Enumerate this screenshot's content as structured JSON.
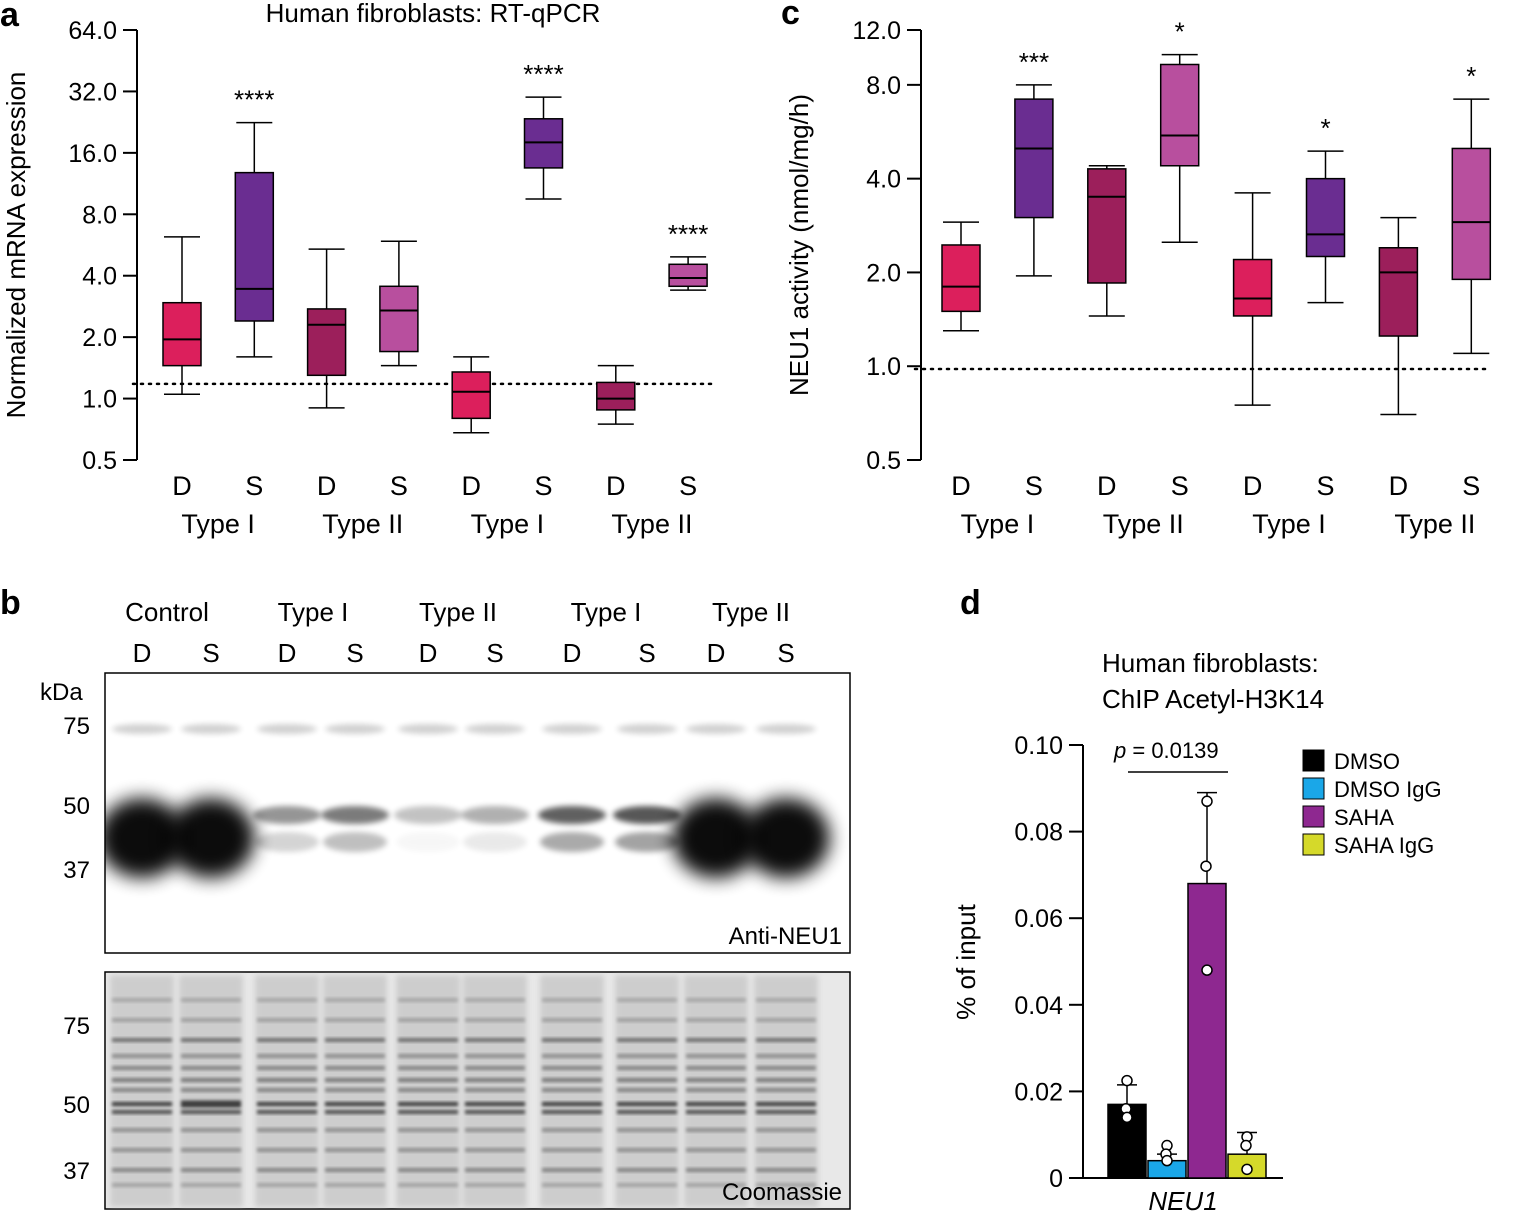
{
  "panel_a": {
    "label": "a",
    "chart_data": {
      "type": "box",
      "title": "Human fibroblasts: RT-qPCR",
      "ylabel": "Normalized mRNA expression",
      "yscale": "log2",
      "ylim": [
        0.5,
        64
      ],
      "yticks": [
        "64.0",
        "32.0",
        "16.0",
        "8.0",
        "4.0",
        "2.0",
        "1.0",
        "0.5"
      ],
      "reference_line": 1.18,
      "groups": [
        "Type I",
        "Type II",
        "Type I",
        "Type II"
      ],
      "categories": [
        "D",
        "S",
        "D",
        "S",
        "D",
        "S",
        "D",
        "S"
      ],
      "colors": [
        "#dc1f5c",
        "#6a2d91",
        "#9c1f5b",
        "#b84f9e",
        "#dc1f5c",
        "#6a2d91",
        "#9c1f5b",
        "#b84f9e"
      ],
      "boxes": [
        {
          "min": 1.05,
          "q1": 1.45,
          "median": 1.95,
          "q3": 2.95,
          "max": 6.2,
          "sig": ""
        },
        {
          "min": 1.6,
          "q1": 2.4,
          "median": 3.45,
          "q3": 12.8,
          "max": 22.5,
          "sig": "****"
        },
        {
          "min": 0.9,
          "q1": 1.3,
          "median": 2.3,
          "q3": 2.75,
          "max": 5.4,
          "sig": ""
        },
        {
          "min": 1.45,
          "q1": 1.7,
          "median": 2.7,
          "q3": 3.55,
          "max": 5.9,
          "sig": ""
        },
        {
          "min": 0.68,
          "q1": 0.8,
          "median": 1.08,
          "q3": 1.35,
          "max": 1.6,
          "sig": ""
        },
        {
          "min": 9.5,
          "q1": 13.5,
          "median": 18.0,
          "q3": 23.5,
          "max": 30.0,
          "sig": "****"
        },
        {
          "min": 0.75,
          "q1": 0.88,
          "median": 1.0,
          "q3": 1.2,
          "max": 1.45,
          "sig": ""
        },
        {
          "min": 3.4,
          "q1": 3.55,
          "median": 3.9,
          "q3": 4.55,
          "max": 4.95,
          "sig": "****"
        }
      ]
    }
  },
  "panel_c": {
    "label": "c",
    "chart_data": {
      "type": "box",
      "ylabel": "NEU1 activity (nmol/mg/h)",
      "yscale": "log2",
      "ylim": [
        0.5,
        12
      ],
      "yticks": [
        "12.0",
        "8.0",
        "4.0",
        "2.0",
        "1.0",
        "0.5"
      ],
      "reference_line": 0.98,
      "groups": [
        "Type I",
        "Type II",
        "Type I",
        "Type II"
      ],
      "categories": [
        "D",
        "S",
        "D",
        "S",
        "D",
        "S",
        "D",
        "S"
      ],
      "colors": [
        "#dc1f5c",
        "#6a2d91",
        "#9c1f5b",
        "#b84f9e",
        "#dc1f5c",
        "#6a2d91",
        "#9c1f5b",
        "#b84f9e"
      ],
      "boxes": [
        {
          "min": 1.3,
          "q1": 1.5,
          "median": 1.8,
          "q3": 2.45,
          "max": 2.9,
          "sig": ""
        },
        {
          "min": 1.95,
          "q1": 3.0,
          "median": 5.0,
          "q3": 7.2,
          "max": 8.0,
          "sig": "***"
        },
        {
          "min": 1.45,
          "q1": 1.85,
          "median": 3.5,
          "q3": 4.3,
          "max": 4.4,
          "sig": ""
        },
        {
          "min": 2.5,
          "q1": 4.4,
          "median": 5.5,
          "q3": 9.3,
          "max": 10.0,
          "sig": "*"
        },
        {
          "min": 0.75,
          "q1": 1.45,
          "median": 1.65,
          "q3": 2.2,
          "max": 3.6,
          "sig": ""
        },
        {
          "min": 1.6,
          "q1": 2.25,
          "median": 2.65,
          "q3": 4.0,
          "max": 4.9,
          "sig": "*"
        },
        {
          "min": 0.7,
          "q1": 1.25,
          "median": 2.0,
          "q3": 2.4,
          "max": 3.0,
          "sig": ""
        },
        {
          "min": 1.1,
          "q1": 1.9,
          "median": 2.9,
          "q3": 5.0,
          "max": 7.2,
          "sig": "*"
        }
      ]
    }
  },
  "panel_b": {
    "label": "b",
    "groups": [
      "Control",
      "Type I",
      "Type II",
      "Type I",
      "Type II"
    ],
    "lanes": [
      "D",
      "S",
      "D",
      "S",
      "D",
      "S",
      "D",
      "S",
      "D",
      "S"
    ],
    "kda_label": "kDa",
    "top_markers": [
      "75",
      "50",
      "37"
    ],
    "bottom_markers": [
      "75",
      "50",
      "37"
    ],
    "top_blot_label": "Anti-NEU1",
    "bottom_blot_label": "Coomassie",
    "neu1_band_intensity": [
      0.95,
      1.0,
      0.3,
      0.45,
      0.05,
      0.15,
      0.6,
      0.65,
      1.0,
      1.0
    ]
  },
  "panel_d": {
    "label": "d",
    "chart_data": {
      "type": "bar",
      "title": [
        "Human fibroblasts:",
        "ChIP Acetyl-H3K14"
      ],
      "ylabel": "% of input",
      "xlabel": "NEU1",
      "ylim": [
        0,
        0.1
      ],
      "yticks": [
        "0.10",
        "0.08",
        "0.06",
        "0.04",
        "0.02",
        "0"
      ],
      "series": [
        {
          "name": "DMSO",
          "color": "#000000",
          "value": 0.017,
          "error": 0.0045,
          "points": [
            0.0225,
            0.016,
            0.014
          ]
        },
        {
          "name": "DMSO IgG",
          "color": "#1aa7e8",
          "value": 0.004,
          "error": 0.0015,
          "points": [
            0.0075,
            0.0055,
            0.004
          ]
        },
        {
          "name": "SAHA",
          "color": "#8e2890",
          "value": 0.068,
          "error": 0.021,
          "points": [
            0.087,
            0.072,
            0.048
          ]
        },
        {
          "name": "SAHA IgG",
          "color": "#d5d92a",
          "value": 0.0055,
          "error": 0.005,
          "points": [
            0.0095,
            0.0075,
            0.002
          ]
        }
      ],
      "annotation": {
        "p_label": "p",
        "p_text": " = 0.0139"
      }
    }
  }
}
